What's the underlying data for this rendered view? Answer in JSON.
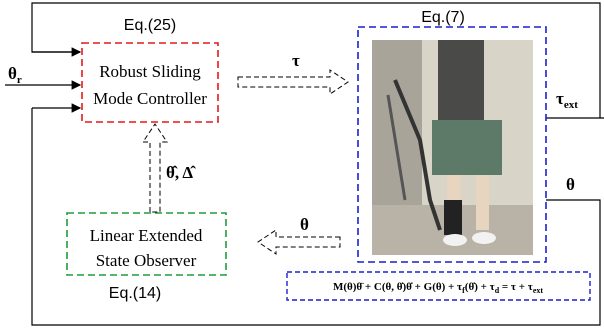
{
  "controller": {
    "eq_label": "Eq.(25)",
    "lines": [
      "Robust Sliding",
      "Mode Controller"
    ]
  },
  "observer": {
    "eq_label": "Eq.(14)",
    "lines": [
      "Linear Extended",
      "State Observer"
    ]
  },
  "plant": {
    "eq_label": "Eq.(7)"
  },
  "signals": {
    "reference": {
      "symbol": "θ",
      "subscript": "r"
    },
    "torque": "τ",
    "external_torque": {
      "symbol": "τ",
      "subscript": "ext"
    },
    "output": "θ",
    "observer_input": "θ",
    "estimates": "θ̂, Δ̂"
  },
  "equation": {
    "parts": [
      {
        "text": "M(θ)θ̈ + C(θ, θ̇)θ̇ + G(θ) + τ",
        "sub": false
      },
      {
        "text": "f",
        "sub": true
      },
      {
        "text": "(θ̇) + τ",
        "sub": false
      },
      {
        "text": "d",
        "sub": true
      },
      {
        "text": " = τ + τ",
        "sub": false
      },
      {
        "text": "ext",
        "sub": true
      }
    ]
  }
}
